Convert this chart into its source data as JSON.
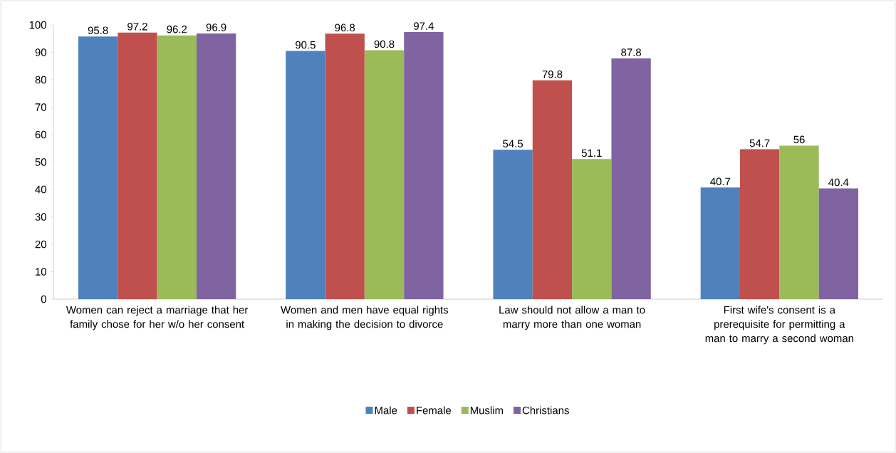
{
  "chart_data": {
    "type": "bar",
    "categories": [
      "Women can reject a marriage that her family chose for her w/o her consent",
      "Women and men have equal rights in making the decision to divorce",
      "Law should not allow a man to marry more than one woman",
      "First wife's consent is a prerequisite for permitting a man to marry a second woman"
    ],
    "series": [
      {
        "name": "Male",
        "color": "#4f81bd",
        "values": [
          95.8,
          90.5,
          54.5,
          40.7
        ]
      },
      {
        "name": "Female",
        "color": "#c0504d",
        "values": [
          97.2,
          96.8,
          79.8,
          54.7
        ]
      },
      {
        "name": "Muslim",
        "color": "#9bbb59",
        "values": [
          96.2,
          90.8,
          51.1,
          56
        ]
      },
      {
        "name": "Christians",
        "color": "#8064a2",
        "values": [
          96.9,
          97.4,
          87.8,
          40.4
        ]
      }
    ],
    "ylim": [
      0,
      100
    ],
    "yticks": [
      0,
      10,
      20,
      30,
      40,
      50,
      60,
      70,
      80,
      90,
      100
    ],
    "data_labels": true,
    "legend": "bottom",
    "grid": false
  }
}
